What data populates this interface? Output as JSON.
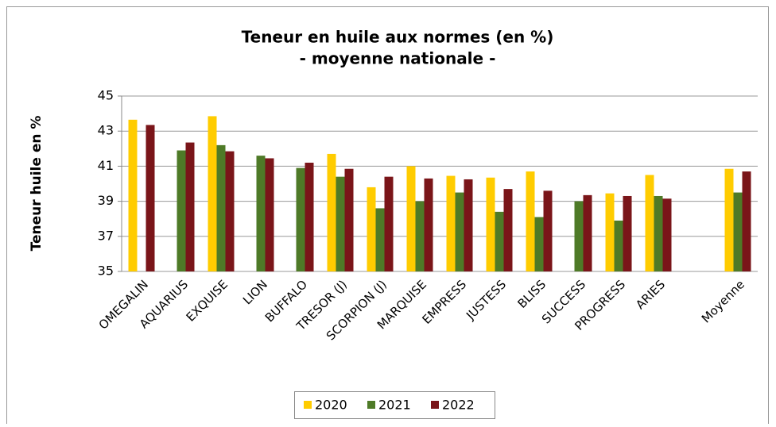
{
  "chart_data": {
    "type": "bar",
    "title": "Teneur en huile aux normes (en %)",
    "subtitle": "- moyenne nationale -",
    "y_label": "Teneur huile en %",
    "categories": [
      "OMEGALIN",
      "AQUARIUS",
      "EXQUISE",
      "LION",
      "BUFFALO",
      "TRESOR (J)",
      "SCORPION (J)",
      "MARQUISE",
      "EMPRESS",
      "JUSTESS",
      "BLISS",
      "SUCCESS",
      "PROGRESS",
      "ARIES",
      null,
      "Moyenne"
    ],
    "series": [
      {
        "name": "2020",
        "color": "#ffcc00",
        "values": [
          43.65,
          null,
          43.85,
          null,
          null,
          41.7,
          39.8,
          41.0,
          40.45,
          40.35,
          40.7,
          null,
          39.45,
          40.5,
          null,
          40.85
        ]
      },
      {
        "name": "2021",
        "color": "#4e7a27",
        "values": [
          null,
          41.9,
          42.2,
          41.6,
          40.9,
          40.4,
          38.6,
          39.0,
          39.5,
          38.4,
          38.1,
          39.0,
          37.9,
          39.3,
          null,
          39.5
        ]
      },
      {
        "name": "2022",
        "color": "#7a1519",
        "values": [
          43.35,
          42.35,
          41.85,
          41.45,
          41.2,
          40.85,
          40.4,
          40.3,
          40.25,
          39.7,
          39.6,
          39.35,
          39.3,
          39.15,
          null,
          40.7
        ]
      }
    ],
    "ylim": [
      35,
      45
    ],
    "yticks": [
      35,
      37,
      39,
      41,
      43,
      45
    ],
    "grid": true,
    "legend": "bottom"
  }
}
